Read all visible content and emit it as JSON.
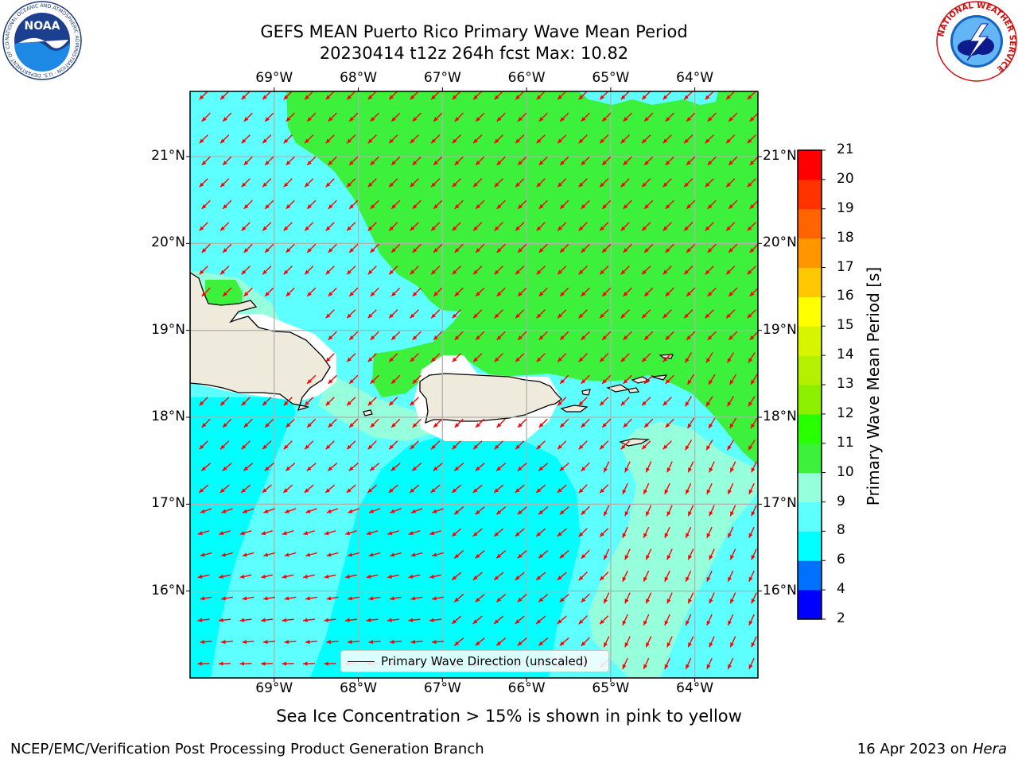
{
  "header": {
    "title_line1": "GEFS MEAN Puerto Rico Primary Wave Mean Period",
    "title_line2": "20230414 t12z 264h fcst   Max: 10.82"
  },
  "logos": {
    "noaa_text": "NOAA",
    "noaa_ring_text": "NATIONAL OCEANIC AND ATMOSPHERIC ADMINISTRATION · U.S. DEPARTMENT OF COMMERCE",
    "nws_ring_text": "NATIONAL WEATHER SERVICE"
  },
  "map": {
    "longitude_labels": [
      "69°W",
      "68°W",
      "67°W",
      "66°W",
      "65°W",
      "64°W"
    ],
    "latitude_labels": [
      "21°N",
      "20°N",
      "19°N",
      "18°N",
      "17°N",
      "16°N"
    ],
    "longitudes": [
      -69,
      -68,
      -67,
      -66,
      -65,
      -64
    ],
    "latitudes": [
      21,
      20,
      19,
      18,
      17,
      16
    ],
    "extent": {
      "lon_min": -70.0,
      "lon_max": -63.25,
      "lat_min": 15.0,
      "lat_max": 21.75
    },
    "max_period": 10.82,
    "wave_direction_to": "southwest",
    "legend_label": "Primary Wave Direction (unscaled)",
    "colors": {
      "land": "#efebdc",
      "arrow": "#ff0000",
      "grid": "#b0b0b0"
    }
  },
  "colorbar": {
    "title": "Primary Wave Mean Period [s]",
    "ticks": [
      "2",
      "4",
      "6",
      "8",
      "9",
      "10",
      "11",
      "12",
      "13",
      "14",
      "15",
      "16",
      "17",
      "18",
      "19",
      "20",
      "21"
    ],
    "bins": [
      {
        "from": 2,
        "to": 4,
        "color": "#0000ff"
      },
      {
        "from": 4,
        "to": 6,
        "color": "#0070ff"
      },
      {
        "from": 6,
        "to": 8,
        "color": "#00ffff"
      },
      {
        "from": 8,
        "to": 9,
        "color": "#5effff"
      },
      {
        "from": 9,
        "to": 10,
        "color": "#96ffdc"
      },
      {
        "from": 10,
        "to": 11,
        "color": "#3cf03c"
      },
      {
        "from": 11,
        "to": 12,
        "color": "#28ff00"
      },
      {
        "from": 12,
        "to": 13,
        "color": "#8cf000"
      },
      {
        "from": 13,
        "to": 14,
        "color": "#b4f000"
      },
      {
        "from": 14,
        "to": 15,
        "color": "#d8f500"
      },
      {
        "from": 15,
        "to": 16,
        "color": "#ffff00"
      },
      {
        "from": 16,
        "to": 17,
        "color": "#ffc800"
      },
      {
        "from": 17,
        "to": 18,
        "color": "#ff9600"
      },
      {
        "from": 18,
        "to": 19,
        "color": "#ff6400"
      },
      {
        "from": 19,
        "to": 20,
        "color": "#ff3200"
      },
      {
        "from": 20,
        "to": 21,
        "color": "#ff0000"
      }
    ]
  },
  "notes": {
    "sea_ice": "Sea Ice Concentration > 15% is shown in pink to yellow"
  },
  "footer": {
    "left": "NCEP/EMC/Verification Post Processing Product Generation Branch",
    "right_date": "16 Apr 2023 on ",
    "right_host": "Hera"
  }
}
